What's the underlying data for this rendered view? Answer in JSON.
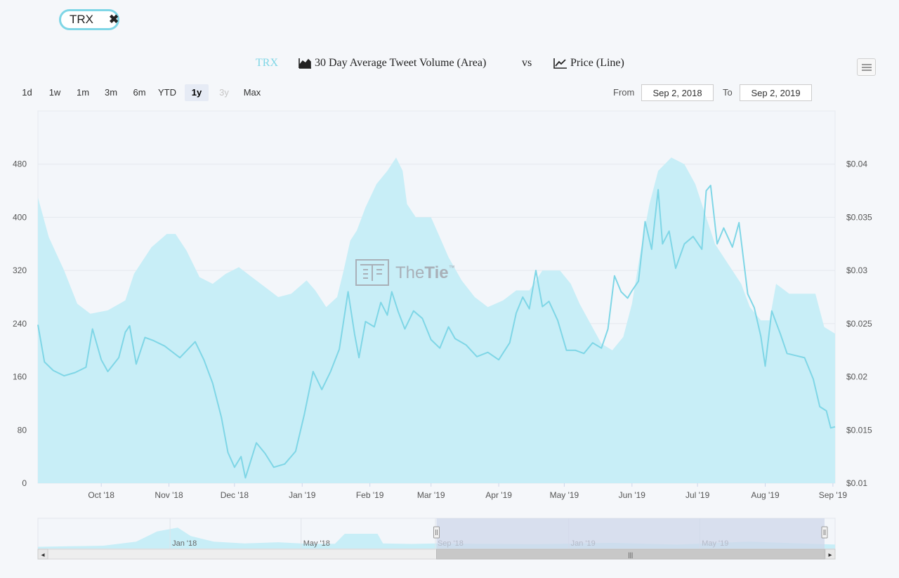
{
  "chip": {
    "label": "TRX",
    "close": "✖"
  },
  "title": {
    "ticker": "TRX",
    "area_label": "30 Day Average Tweet Volume (Area)",
    "vs": "vs",
    "line_label": "Price (Line)"
  },
  "range_selector": {
    "buttons": [
      {
        "label": "1d",
        "state": "normal"
      },
      {
        "label": "1w",
        "state": "normal"
      },
      {
        "label": "1m",
        "state": "normal"
      },
      {
        "label": "3m",
        "state": "normal"
      },
      {
        "label": "6m",
        "state": "normal"
      },
      {
        "label": "YTD",
        "state": "normal"
      },
      {
        "label": "1y",
        "state": "active"
      },
      {
        "label": "3y",
        "state": "disabled"
      },
      {
        "label": "Max",
        "state": "normal"
      }
    ],
    "from_label": "From",
    "from_value": "Sep 2, 2018",
    "to_label": "To",
    "to_value": "Sep 2, 2019"
  },
  "watermark": {
    "text_light": "The",
    "text_bold": "Tie",
    "mark": "™"
  },
  "colors": {
    "area": "#c8eef7",
    "line": "#7fd6e6",
    "grid": "#e4e8ee",
    "navigator_mask": "#cfd7ea"
  },
  "chart_data": {
    "type": "area+line",
    "x_range": [
      "2018-09-02",
      "2019-09-02"
    ],
    "x_tick_labels": [
      "Oct '18",
      "Nov '18",
      "Dec '18",
      "Jan '19",
      "Feb '19",
      "Mar '19",
      "Apr '19",
      "May '19",
      "Jun '19",
      "Jul '19",
      "Aug '19",
      "Sep '19"
    ],
    "y_left": {
      "label": "",
      "range": [
        0,
        560
      ],
      "ticks": [
        0,
        80,
        160,
        240,
        320,
        400,
        480
      ]
    },
    "y_right": {
      "label": "",
      "range": [
        0.01,
        0.045
      ],
      "ticks": [
        "$0.01",
        "$0.015",
        "$0.02",
        "$0.025",
        "$0.03",
        "$0.035",
        "$0.04"
      ],
      "tick_values": [
        0.01,
        0.015,
        0.02,
        0.025,
        0.03,
        0.035,
        0.04
      ]
    },
    "series": [
      {
        "type": "area",
        "axis": "left",
        "points": [
          [
            "2018-09-02",
            430
          ],
          [
            "2018-09-07",
            370
          ],
          [
            "2018-09-14",
            320
          ],
          [
            "2018-09-20",
            270
          ],
          [
            "2018-09-26",
            255
          ],
          [
            "2018-10-04",
            260
          ],
          [
            "2018-10-12",
            275
          ],
          [
            "2018-10-16",
            315
          ],
          [
            "2018-10-24",
            355
          ],
          [
            "2018-10-31",
            375
          ],
          [
            "2018-11-04",
            375
          ],
          [
            "2018-11-09",
            350
          ],
          [
            "2018-11-15",
            310
          ],
          [
            "2018-11-21",
            300
          ],
          [
            "2018-11-27",
            315
          ],
          [
            "2018-12-03",
            325
          ],
          [
            "2018-12-09",
            310
          ],
          [
            "2018-12-15",
            295
          ],
          [
            "2018-12-21",
            280
          ],
          [
            "2018-12-27",
            285
          ],
          [
            "2019-01-03",
            305
          ],
          [
            "2019-01-07",
            290
          ],
          [
            "2019-01-12",
            265
          ],
          [
            "2019-01-17",
            280
          ],
          [
            "2019-01-20",
            320
          ],
          [
            "2019-01-23",
            365
          ],
          [
            "2019-01-26",
            380
          ],
          [
            "2019-01-30",
            415
          ],
          [
            "2019-02-04",
            450
          ],
          [
            "2019-02-09",
            470
          ],
          [
            "2019-02-13",
            490
          ],
          [
            "2019-02-16",
            470
          ],
          [
            "2019-02-18",
            420
          ],
          [
            "2019-02-22",
            400
          ],
          [
            "2019-02-26",
            400
          ],
          [
            "2019-03-01",
            400
          ],
          [
            "2019-03-05",
            370
          ],
          [
            "2019-03-09",
            340
          ],
          [
            "2019-03-15",
            305
          ],
          [
            "2019-03-21",
            280
          ],
          [
            "2019-03-27",
            265
          ],
          [
            "2019-04-03",
            275
          ],
          [
            "2019-04-09",
            290
          ],
          [
            "2019-04-15",
            290
          ],
          [
            "2019-04-21",
            320
          ],
          [
            "2019-04-29",
            320
          ],
          [
            "2019-05-04",
            300
          ],
          [
            "2019-05-08",
            270
          ],
          [
            "2019-05-13",
            240
          ],
          [
            "2019-05-18",
            210
          ],
          [
            "2019-05-23",
            200
          ],
          [
            "2019-05-28",
            220
          ],
          [
            "2019-06-01",
            270
          ],
          [
            "2019-06-05",
            350
          ],
          [
            "2019-06-09",
            420
          ],
          [
            "2019-06-13",
            470
          ],
          [
            "2019-06-19",
            490
          ],
          [
            "2019-06-25",
            480
          ],
          [
            "2019-06-30",
            450
          ],
          [
            "2019-07-04",
            410
          ],
          [
            "2019-07-09",
            360
          ],
          [
            "2019-07-15",
            330
          ],
          [
            "2019-07-21",
            300
          ],
          [
            "2019-07-25",
            265
          ],
          [
            "2019-07-30",
            245
          ],
          [
            "2019-08-03",
            245
          ],
          [
            "2019-08-06",
            300
          ],
          [
            "2019-08-12",
            285
          ],
          [
            "2019-08-18",
            285
          ],
          [
            "2019-08-24",
            285
          ],
          [
            "2019-08-28",
            235
          ],
          [
            "2019-09-02",
            225
          ]
        ]
      },
      {
        "type": "line",
        "axis": "right",
        "points": [
          [
            "2018-09-02",
            0.0249
          ],
          [
            "2018-09-05",
            0.0214
          ],
          [
            "2018-09-09",
            0.0206
          ],
          [
            "2018-09-14",
            0.0201
          ],
          [
            "2018-09-19",
            0.0204
          ],
          [
            "2018-09-24",
            0.0209
          ],
          [
            "2018-09-27",
            0.0245
          ],
          [
            "2018-10-01",
            0.0216
          ],
          [
            "2018-10-04",
            0.0205
          ],
          [
            "2018-10-09",
            0.0218
          ],
          [
            "2018-10-12",
            0.0242
          ],
          [
            "2018-10-14",
            0.0248
          ],
          [
            "2018-10-17",
            0.0212
          ],
          [
            "2018-10-21",
            0.0237
          ],
          [
            "2018-10-25",
            0.0234
          ],
          [
            "2018-10-30",
            0.0229
          ],
          [
            "2018-11-06",
            0.0218
          ],
          [
            "2018-11-13",
            0.0233
          ],
          [
            "2018-11-17",
            0.0216
          ],
          [
            "2018-11-21",
            0.0194
          ],
          [
            "2018-11-25",
            0.0162
          ],
          [
            "2018-11-28",
            0.0129
          ],
          [
            "2018-12-01",
            0.0115
          ],
          [
            "2018-12-04",
            0.0125
          ],
          [
            "2018-12-06",
            0.0105
          ],
          [
            "2018-12-08",
            0.0118
          ],
          [
            "2018-12-11",
            0.0138
          ],
          [
            "2018-12-15",
            0.0128
          ],
          [
            "2018-12-19",
            0.0115
          ],
          [
            "2018-12-24",
            0.0118
          ],
          [
            "2018-12-29",
            0.013
          ],
          [
            "2019-01-02",
            0.0165
          ],
          [
            "2019-01-06",
            0.0205
          ],
          [
            "2019-01-10",
            0.0188
          ],
          [
            "2019-01-14",
            0.0205
          ],
          [
            "2019-01-18",
            0.0226
          ],
          [
            "2019-01-22",
            0.028
          ],
          [
            "2019-01-25",
            0.024
          ],
          [
            "2019-01-27",
            0.0218
          ],
          [
            "2019-01-30",
            0.0252
          ],
          [
            "2019-02-03",
            0.0247
          ],
          [
            "2019-02-06",
            0.027
          ],
          [
            "2019-02-09",
            0.0258
          ],
          [
            "2019-02-11",
            0.028
          ],
          [
            "2019-02-14",
            0.0261
          ],
          [
            "2019-02-17",
            0.0245
          ],
          [
            "2019-02-21",
            0.0262
          ],
          [
            "2019-02-25",
            0.0255
          ],
          [
            "2019-03-01",
            0.0235
          ],
          [
            "2019-03-05",
            0.0227
          ],
          [
            "2019-03-09",
            0.0247
          ],
          [
            "2019-03-12",
            0.0236
          ],
          [
            "2019-03-17",
            0.023
          ],
          [
            "2019-03-22",
            0.0219
          ],
          [
            "2019-03-27",
            0.0223
          ],
          [
            "2019-04-01",
            0.0216
          ],
          [
            "2019-04-06",
            0.0232
          ],
          [
            "2019-04-09",
            0.026
          ],
          [
            "2019-04-12",
            0.0275
          ],
          [
            "2019-04-15",
            0.0264
          ],
          [
            "2019-04-18",
            0.03
          ],
          [
            "2019-04-21",
            0.0266
          ],
          [
            "2019-04-24",
            0.0271
          ],
          [
            "2019-04-28",
            0.0253
          ],
          [
            "2019-05-02",
            0.0225
          ],
          [
            "2019-05-06",
            0.0225
          ],
          [
            "2019-05-10",
            0.0222
          ],
          [
            "2019-05-14",
            0.0232
          ],
          [
            "2019-05-18",
            0.0227
          ],
          [
            "2019-05-21",
            0.0245
          ],
          [
            "2019-05-24",
            0.0295
          ],
          [
            "2019-05-27",
            0.028
          ],
          [
            "2019-05-30",
            0.0274
          ],
          [
            "2019-06-01",
            0.0281
          ],
          [
            "2019-06-04",
            0.029
          ],
          [
            "2019-06-07",
            0.0346
          ],
          [
            "2019-06-10",
            0.032
          ],
          [
            "2019-06-13",
            0.0376
          ],
          [
            "2019-06-15",
            0.0325
          ],
          [
            "2019-06-18",
            0.0337
          ],
          [
            "2019-06-21",
            0.0302
          ],
          [
            "2019-06-25",
            0.0325
          ],
          [
            "2019-06-29",
            0.0332
          ],
          [
            "2019-07-03",
            0.032
          ],
          [
            "2019-07-05",
            0.0375
          ],
          [
            "2019-07-07",
            0.038
          ],
          [
            "2019-07-10",
            0.0325
          ],
          [
            "2019-07-13",
            0.034
          ],
          [
            "2019-07-17",
            0.0322
          ],
          [
            "2019-07-20",
            0.0345
          ],
          [
            "2019-07-24",
            0.0278
          ],
          [
            "2019-07-27",
            0.0265
          ],
          [
            "2019-07-30",
            0.0238
          ],
          [
            "2019-08-01",
            0.021
          ],
          [
            "2019-08-04",
            0.0262
          ],
          [
            "2019-08-08",
            0.024
          ],
          [
            "2019-08-11",
            0.0222
          ],
          [
            "2019-08-15",
            0.022
          ],
          [
            "2019-08-19",
            0.0218
          ],
          [
            "2019-08-23",
            0.0198
          ],
          [
            "2019-08-26",
            0.0172
          ],
          [
            "2019-08-29",
            0.0168
          ],
          [
            "2019-08-31",
            0.0152
          ],
          [
            "2019-09-02",
            0.0153
          ]
        ]
      }
    ],
    "grid": true,
    "legend": "none"
  },
  "navigator": {
    "range": [
      "2017-09-02",
      "2019-09-02"
    ],
    "tick_labels": [
      "Jan '18",
      "May '18",
      "Sep '18",
      "Jan '19",
      "May '19"
    ],
    "selected": [
      "2018-09-02",
      "2019-09-02"
    ],
    "handle_glyph": "|||",
    "scroll_left": "◂",
    "scroll_right": "▸",
    "area_points": [
      [
        "2017-09-02",
        15
      ],
      [
        "2017-10-01",
        20
      ],
      [
        "2017-11-01",
        25
      ],
      [
        "2017-12-01",
        60
      ],
      [
        "2017-12-20",
        150
      ],
      [
        "2018-01-08",
        185
      ],
      [
        "2018-01-20",
        110
      ],
      [
        "2018-02-10",
        60
      ],
      [
        "2018-03-10",
        45
      ],
      [
        "2018-04-10",
        55
      ],
      [
        "2018-05-10",
        40
      ],
      [
        "2018-06-01",
        42
      ],
      [
        "2018-06-10",
        130
      ],
      [
        "2018-07-10",
        130
      ],
      [
        "2018-07-15",
        45
      ],
      [
        "2018-08-10",
        40
      ],
      [
        "2018-09-02",
        45
      ],
      [
        "2018-12-01",
        38
      ],
      [
        "2019-02-10",
        50
      ],
      [
        "2019-04-10",
        35
      ],
      [
        "2019-06-15",
        60
      ],
      [
        "2019-09-02",
        35
      ]
    ]
  }
}
